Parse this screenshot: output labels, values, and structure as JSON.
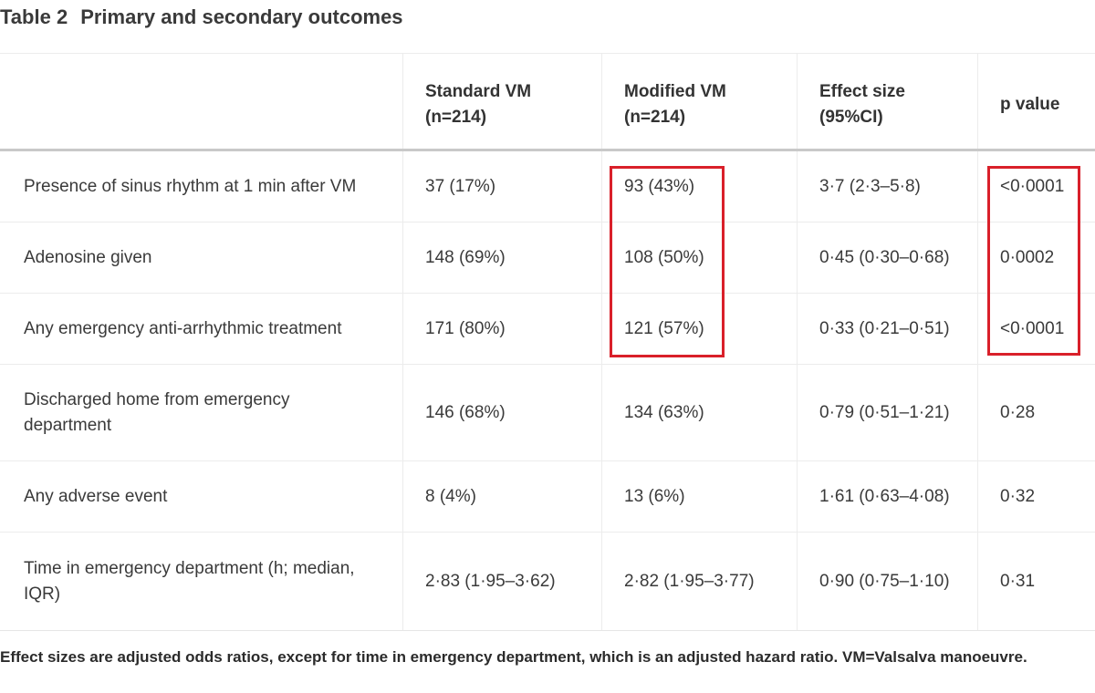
{
  "title": {
    "label": "Table 2",
    "text": "Primary and secondary outcomes"
  },
  "headers": [
    "",
    "Standard VM\n(n=214)",
    "Modified VM\n(n=214)",
    "Effect size\n(95%CI)",
    "p value"
  ],
  "rows": [
    [
      "Presence of sinus rhythm at 1 min after VM",
      "37 (17%)",
      "93 (43%)",
      "3·7 (2·3–5·8)",
      "<0·0001"
    ],
    [
      "Adenosine given",
      "148 (69%)",
      "108 (50%)",
      "0·45 (0·30–0·68)",
      "0·0002"
    ],
    [
      "Any emergency anti-arrhythmic treatment",
      "171 (80%)",
      "121 (57%)",
      "0·33 (0·21–0·51)",
      "<0·0001"
    ],
    [
      "Discharged home from emergency department",
      "146 (68%)",
      "134 (63%)",
      "0·79 (0·51–1·21)",
      "0·28"
    ],
    [
      "Any adverse event",
      "8 (4%)",
      "13 (6%)",
      "1·61 (0·63–4·08)",
      "0·32"
    ],
    [
      "Time in emergency department (h; median, IQR)",
      "2·83 (1·95–3·62)",
      "2·82 (1·95–3·77)",
      "0·90 (0·75–1·10)",
      "0·31"
    ]
  ],
  "highlight_color": "#d9202a",
  "footnote": "Effect sizes are adjusted odds ratios, except for time in emergency department, which is an adjusted hazard ratio. VM=Valsalva manoeuvre."
}
